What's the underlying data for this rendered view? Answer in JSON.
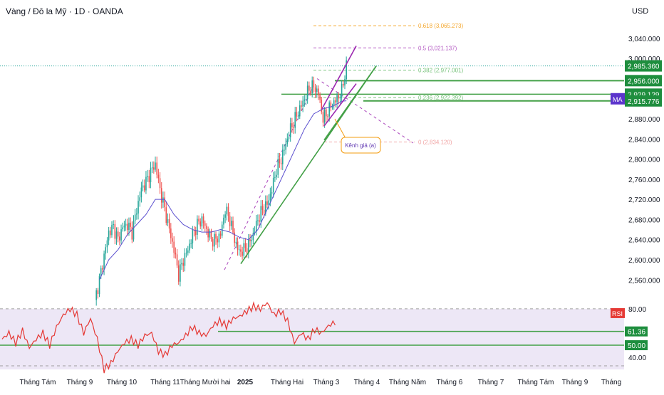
{
  "header": {
    "title": "Vàng / Đô la Mỹ · 1D · OANDA",
    "currency": "USD"
  },
  "colors": {
    "up": "#26a69a",
    "down": "#ef5350",
    "ma": "#5b4fcf",
    "green_line": "#43a047",
    "purple_line": "#9c27b0",
    "rsi": "#e53935",
    "rsi_band": "#ede7f6",
    "price_tag": "#1e8e3e",
    "fib_orange": "#f39c12",
    "fib_purple": "#ab47bc",
    "fib_teal": "#66bb6a"
  },
  "chart_data": [
    {
      "type": "candlestick",
      "title": "Vàng / Đô la Mỹ · 1D · OANDA",
      "ylim": [
        2525,
        3105
      ],
      "yticks": [
        "3,040.000",
        "3,000.000",
        "2,960.000",
        "2,920.000",
        "2,880.000",
        "2,840.000",
        "2,800.000",
        "2,760.000",
        "2,720.000",
        "2,680.000",
        "2,640.000",
        "2,600.000",
        "2,560.000"
      ],
      "ytick_values": [
        3040,
        3000,
        2960,
        2920,
        2880,
        2840,
        2800,
        2760,
        2720,
        2680,
        2640,
        2600,
        2560
      ],
      "xticks": [
        "Tháng Tám",
        "Tháng 9",
        "Tháng 10",
        "Tháng 11",
        "Tháng Mười hai",
        "2025",
        "Tháng Hai",
        "Tháng 3",
        "Tháng 4",
        "Tháng Năm",
        "Tháng 6",
        "Tháng 7",
        "Tháng Tám",
        "Tháng 9",
        "Tháng"
      ],
      "close_path": [
        [
          0,
          2520
        ],
        [
          3,
          2560
        ],
        [
          6,
          2608
        ],
        [
          9,
          2655
        ],
        [
          12,
          2665
        ],
        [
          15,
          2640
        ],
        [
          18,
          2665
        ],
        [
          21,
          2670
        ],
        [
          24,
          2655
        ],
        [
          27,
          2700
        ],
        [
          30,
          2740
        ],
        [
          33,
          2755
        ],
        [
          36,
          2775
        ],
        [
          39,
          2790
        ],
        [
          42,
          2740
        ],
        [
          45,
          2700
        ],
        [
          48,
          2660
        ],
        [
          51,
          2620
        ],
        [
          54,
          2570
        ],
        [
          57,
          2600
        ],
        [
          60,
          2620
        ],
        [
          63,
          2650
        ],
        [
          66,
          2670
        ],
        [
          69,
          2680
        ],
        [
          72,
          2660
        ],
        [
          75,
          2640
        ],
        [
          78,
          2640
        ],
        [
          81,
          2650
        ],
        [
          84,
          2700
        ],
        [
          87,
          2680
        ],
        [
          90,
          2640
        ],
        [
          93,
          2615
        ],
        [
          96,
          2620
        ],
        [
          99,
          2630
        ],
        [
          102,
          2650
        ],
        [
          105,
          2680
        ],
        [
          108,
          2700
        ],
        [
          111,
          2710
        ],
        [
          114,
          2740
        ],
        [
          117,
          2780
        ],
        [
          120,
          2800
        ],
        [
          123,
          2830
        ],
        [
          126,
          2860
        ],
        [
          129,
          2880
        ],
        [
          132,
          2900
        ],
        [
          135,
          2920
        ],
        [
          138,
          2940
        ],
        [
          141,
          2945
        ],
        [
          144,
          2930
        ],
        [
          147,
          2880
        ],
        [
          150,
          2895
        ],
        [
          153,
          2910
        ],
        [
          156,
          2920
        ],
        [
          159,
          2935
        ],
        [
          162,
          2985
        ]
      ],
      "ma_path": [
        [
          3,
          2560
        ],
        [
          9,
          2600
        ],
        [
          15,
          2620
        ],
        [
          21,
          2650
        ],
        [
          27,
          2670
        ],
        [
          33,
          2690
        ],
        [
          39,
          2720
        ],
        [
          45,
          2720
        ],
        [
          51,
          2690
        ],
        [
          57,
          2670
        ],
        [
          63,
          2660
        ],
        [
          69,
          2655
        ],
        [
          75,
          2655
        ],
        [
          81,
          2660
        ],
        [
          87,
          2655
        ],
        [
          93,
          2645
        ],
        [
          99,
          2640
        ],
        [
          105,
          2660
        ],
        [
          111,
          2700
        ],
        [
          117,
          2740
        ],
        [
          123,
          2780
        ],
        [
          129,
          2820
        ],
        [
          135,
          2860
        ],
        [
          141,
          2890
        ],
        [
          147,
          2900
        ],
        [
          153,
          2905
        ],
        [
          159,
          2915
        ],
        [
          162,
          2916
        ]
      ],
      "horizontal_levels": [
        {
          "label": "2,956.000",
          "value": 2956
        },
        {
          "label": "2,929.129",
          "value": 2929.129
        },
        {
          "label": "2,985.360",
          "value": 2985.36,
          "current": true
        }
      ],
      "ma_level": {
        "label": "2,915.776",
        "value": 2915.776,
        "tag": "MA"
      },
      "fibonacci": [
        {
          "label": "0.618 (3,065.273)",
          "value": 3065.273
        },
        {
          "label": "0.5 (3,021.137)",
          "value": 3021.137
        },
        {
          "label": "0.382 (2,977.001)",
          "value": 2977.001
        },
        {
          "label": "0.236 (2,922.392)",
          "value": 2922.392
        },
        {
          "label": "0 (2,834.120)",
          "value": 2834.12
        }
      ],
      "annotation": {
        "text": "Kênh giá (a)"
      }
    },
    {
      "type": "line",
      "name": "RSI",
      "ylim": [
        33,
        87
      ],
      "yticks": [
        "80.00",
        "40.00"
      ],
      "ytick_values": [
        80,
        40
      ],
      "levels": [
        {
          "label": "61.36",
          "value": 61.36
        },
        {
          "label": "50.00",
          "value": 50
        }
      ],
      "rsi_path": [
        [
          0,
          55
        ],
        [
          3,
          60
        ],
        [
          6,
          52
        ],
        [
          9,
          62
        ],
        [
          12,
          48
        ],
        [
          15,
          55
        ],
        [
          18,
          60
        ],
        [
          21,
          50
        ],
        [
          24,
          65
        ],
        [
          27,
          75
        ],
        [
          30,
          80
        ],
        [
          33,
          75
        ],
        [
          36,
          60
        ],
        [
          39,
          72
        ],
        [
          42,
          55
        ],
        [
          45,
          30
        ],
        [
          48,
          35
        ],
        [
          51,
          45
        ],
        [
          54,
          52
        ],
        [
          57,
          55
        ],
        [
          60,
          50
        ],
        [
          63,
          58
        ],
        [
          66,
          60
        ],
        [
          69,
          45
        ],
        [
          72,
          42
        ],
        [
          75,
          50
        ],
        [
          78,
          52
        ],
        [
          81,
          58
        ],
        [
          84,
          65
        ],
        [
          87,
          60
        ],
        [
          90,
          58
        ],
        [
          93,
          66
        ],
        [
          96,
          70
        ],
        [
          99,
          66
        ],
        [
          102,
          72
        ],
        [
          105,
          74
        ],
        [
          108,
          78
        ],
        [
          111,
          82
        ],
        [
          114,
          80
        ],
        [
          117,
          85
        ],
        [
          120,
          75
        ],
        [
          123,
          78
        ],
        [
          126,
          70
        ],
        [
          129,
          52
        ],
        [
          132,
          60
        ],
        [
          135,
          55
        ],
        [
          138,
          63
        ],
        [
          141,
          60
        ],
        [
          144,
          66
        ],
        [
          147,
          69
        ]
      ]
    }
  ]
}
